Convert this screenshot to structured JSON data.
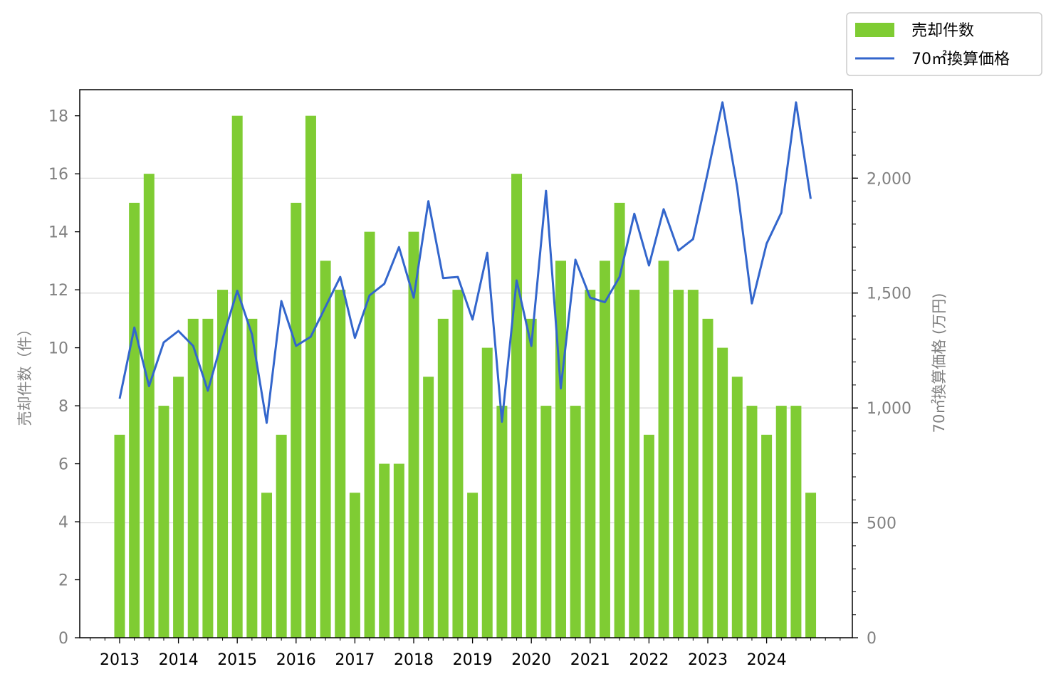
{
  "chart_data": {
    "type": "bar+line",
    "x_tick_labels": [
      "2013",
      "2014",
      "2015",
      "2016",
      "2017",
      "2018",
      "2019",
      "2020",
      "2021",
      "2022",
      "2023",
      "2024"
    ],
    "bar_series": {
      "name": "売却件数",
      "color": "#7fcc33",
      "values": [
        7,
        15,
        16,
        8,
        9,
        11,
        11,
        12,
        18,
        11,
        5,
        7,
        15,
        18,
        13,
        12,
        5,
        14,
        6,
        6,
        14,
        9,
        11,
        12,
        5,
        10,
        8,
        16,
        11,
        8,
        13,
        8,
        12,
        13,
        15,
        12,
        7,
        13,
        12,
        12,
        11,
        10,
        9,
        8,
        7,
        8,
        8,
        5
      ]
    },
    "line_series": {
      "name": "70㎡換算価格",
      "color": "#3366cc",
      "values": [
        1040,
        1350,
        1095,
        1285,
        1335,
        1270,
        1075,
        1300,
        1510,
        1320,
        935,
        1465,
        1270,
        1310,
        1440,
        1570,
        1305,
        1490,
        1540,
        1700,
        1480,
        1900,
        1565,
        1570,
        1385,
        1675,
        940,
        1555,
        1270,
        1945,
        1085,
        1645,
        1480,
        1460,
        1570,
        1845,
        1620,
        1865,
        1685,
        1735,
        2025,
        2330,
        1960,
        1455,
        1715,
        1850,
        2330,
        1910
      ]
    },
    "y_left": {
      "label": "売却件数（件）",
      "lim": [
        0,
        18.9
      ],
      "ticks": [
        0,
        2,
        4,
        6,
        8,
        10,
        12,
        14,
        16,
        18
      ]
    },
    "y_right": {
      "label": "70㎡換算価格 (万円)",
      "lim": [
        0,
        2385
      ],
      "ticks": [
        0,
        500,
        1000,
        1500,
        2000
      ],
      "tick_labels": [
        "0",
        "500",
        "1,000",
        "1,500",
        "2,000"
      ],
      "minor_step": 100
    },
    "grid": "horizontal, right axis",
    "legend_placement": "top-right, outside"
  }
}
